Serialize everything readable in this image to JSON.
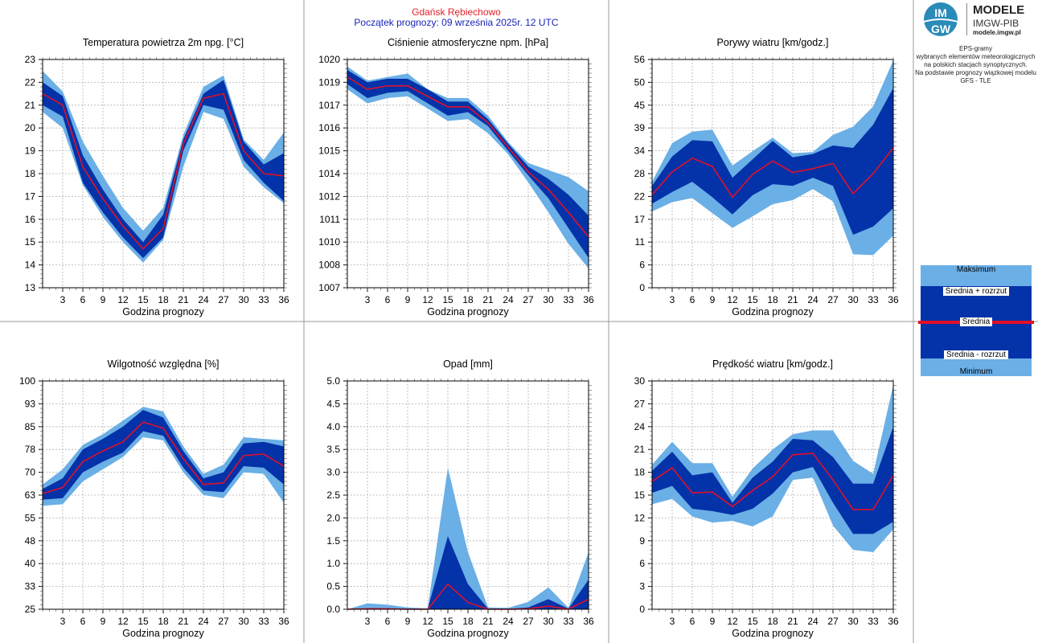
{
  "header": {
    "station": "Gdańsk Rębiechowo",
    "start": "Początek prognozy: 09 września 2025r. 12 UTC"
  },
  "brand": {
    "logo_text_top": "IM",
    "logo_text_bottom": "GW",
    "name1": "MODELE",
    "name2": "IMGW-PIB",
    "site": "modele.imgw.pl"
  },
  "description": {
    "lines": [
      "EPS-gramy",
      "wybranych elementów meteorologicznych",
      "na polskich stacjach  synoptycznych.",
      "",
      "Na podstawie prognozy wiązkowej modelu",
      "GFS - TLE"
    ]
  },
  "legend": {
    "max": "Maksimum",
    "mean_plus": "Średnia + rozrzut",
    "mean": "Średnia",
    "mean_minus": "Średnia - rozrzut",
    "min": "Minimum"
  },
  "colors": {
    "outer_band": "#6aafe6",
    "inner_band": "#0432a8",
    "mean_line": "#e0102a",
    "grid": "#b0b0b0"
  },
  "chart_data": [
    {
      "type": "area",
      "title": "Temperatura powietrza 2m npg. [°C]",
      "xlabel": "Godzina prognozy",
      "ylabel": "",
      "x": [
        0,
        3,
        6,
        9,
        12,
        15,
        18,
        21,
        24,
        27,
        30,
        33,
        36
      ],
      "xticks": [
        "3",
        "6",
        "9",
        "12",
        "15",
        "18",
        "21",
        "24",
        "27",
        "30",
        "33",
        "36"
      ],
      "yticks": [
        "13",
        "14",
        "15",
        "16",
        "17",
        "18",
        "19",
        "20",
        "21",
        "22",
        "23"
      ],
      "ylim": [
        13,
        23
      ],
      "max": [
        22.5,
        21.6,
        19.4,
        17.9,
        16.5,
        15.5,
        16.5,
        19.7,
        21.8,
        22.3,
        19.5,
        18.6,
        19.8
      ],
      "mean_plus": [
        22.0,
        21.4,
        18.8,
        17.3,
        16.0,
        15.0,
        16.2,
        19.5,
        21.5,
        22.1,
        19.4,
        18.4,
        18.9
      ],
      "mean": [
        21.5,
        21.0,
        18.3,
        16.9,
        15.7,
        14.7,
        15.6,
        19.3,
        21.3,
        21.5,
        19.0,
        18.0,
        17.9
      ],
      "mean_minus": [
        21.0,
        20.5,
        17.6,
        16.3,
        15.2,
        14.3,
        15.2,
        19.0,
        21.0,
        20.8,
        18.6,
        17.6,
        16.8
      ],
      "min": [
        20.7,
        20.0,
        17.5,
        16.1,
        15.0,
        14.1,
        15.1,
        18.3,
        20.7,
        20.4,
        18.3,
        17.4,
        16.7
      ]
    },
    {
      "type": "area",
      "title": "Ciśnienie atmosferyczne npm. [hPa]",
      "xlabel": "Godzina prognozy",
      "ylabel": "",
      "x": [
        0,
        3,
        6,
        9,
        12,
        15,
        18,
        21,
        24,
        27,
        30,
        33,
        36
      ],
      "xticks": [
        "3",
        "6",
        "9",
        "12",
        "15",
        "18",
        "21",
        "24",
        "27",
        "30",
        "33",
        "36"
      ],
      "yticks": [
        "1007",
        "1008",
        "1010",
        "1011",
        "1012",
        "1014",
        "1015",
        "1016",
        "1017",
        "1019",
        "1020"
      ],
      "ylim": [
        1007,
        1020
      ],
      "max": [
        1019.6,
        1018.8,
        1019.0,
        1019.2,
        1018.3,
        1017.8,
        1017.8,
        1016.8,
        1015.3,
        1014.1,
        1013.7,
        1013.3,
        1012.5
      ],
      "mean_plus": [
        1019.4,
        1018.7,
        1018.9,
        1018.9,
        1018.3,
        1017.6,
        1017.6,
        1016.6,
        1015.2,
        1013.9,
        1013.2,
        1012.3,
        1011.1
      ],
      "mean": [
        1019.0,
        1018.3,
        1018.5,
        1018.5,
        1017.9,
        1017.3,
        1017.3,
        1016.4,
        1015.0,
        1013.6,
        1012.6,
        1011.3,
        1009.9
      ],
      "mean_minus": [
        1018.6,
        1017.8,
        1018.1,
        1018.2,
        1017.5,
        1016.8,
        1017.0,
        1016.2,
        1014.8,
        1013.4,
        1012.1,
        1010.4,
        1008.7
      ],
      "min": [
        1018.3,
        1017.5,
        1017.8,
        1017.9,
        1017.2,
        1016.5,
        1016.6,
        1015.8,
        1014.6,
        1013.0,
        1011.3,
        1009.5,
        1008.1
      ]
    },
    {
      "type": "area",
      "title": "Porywy wiatru [km/godz.]",
      "xlabel": "Godzina prognozy",
      "ylabel": "",
      "x": [
        0,
        3,
        6,
        9,
        12,
        15,
        18,
        21,
        24,
        27,
        30,
        33,
        36
      ],
      "xticks": [
        "3",
        "6",
        "9",
        "12",
        "15",
        "18",
        "21",
        "24",
        "27",
        "30",
        "33",
        "36"
      ],
      "yticks": [
        "0",
        "6",
        "11",
        "17",
        "22",
        "28",
        "34",
        "39",
        "45",
        "50",
        "56"
      ],
      "ylim": [
        0,
        56
      ],
      "max": [
        26.0,
        35.5,
        38.3,
        38.8,
        30.0,
        33.5,
        36.8,
        33.0,
        33.3,
        37.5,
        39.5,
        44.5,
        55.8
      ],
      "mean_plus": [
        25.0,
        32.2,
        36.2,
        35.9,
        27.0,
        31.5,
        36.0,
        32.0,
        32.8,
        34.9,
        34.3,
        40.0,
        49.0
      ],
      "mean": [
        22.8,
        28.4,
        31.8,
        29.8,
        22.2,
        27.8,
        31.1,
        28.3,
        29.2,
        30.5,
        23.1,
        28.0,
        34.3
      ],
      "mean_minus": [
        20.6,
        23.5,
        26.0,
        22.2,
        18.0,
        22.7,
        25.4,
        25.0,
        27.0,
        25.0,
        13.0,
        15.0,
        19.5
      ],
      "min": [
        18.7,
        21.0,
        22.0,
        18.3,
        14.7,
        17.5,
        20.5,
        21.5,
        24.2,
        21.2,
        8.2,
        8.0,
        12.8
      ]
    },
    {
      "type": "area",
      "title": "Wilgotność względna [%]",
      "xlabel": "Godzina prognozy",
      "ylabel": "",
      "x": [
        0,
        3,
        6,
        9,
        12,
        15,
        18,
        21,
        24,
        27,
        30,
        33,
        36
      ],
      "xticks": [
        "3",
        "6",
        "9",
        "12",
        "15",
        "18",
        "21",
        "24",
        "27",
        "30",
        "33",
        "36"
      ],
      "yticks": [
        "25",
        "33",
        "40",
        "48",
        "55",
        "63",
        "70",
        "78",
        "85",
        "93",
        "100"
      ],
      "ylim": [
        25,
        100
      ],
      "max": [
        66.0,
        71.0,
        79.0,
        82.5,
        87.0,
        91.5,
        90.0,
        78.5,
        69.5,
        72.5,
        81.5,
        81.0,
        80.5
      ],
      "mean_plus": [
        64.5,
        68.0,
        77.5,
        81.0,
        85.0,
        90.5,
        88.0,
        77.0,
        68.0,
        70.0,
        79.5,
        80.0,
        78.5
      ],
      "mean": [
        63.0,
        65.0,
        73.5,
        77.0,
        80.0,
        86.5,
        84.5,
        74.5,
        66.0,
        66.5,
        75.5,
        76.0,
        72.0
      ],
      "mean_minus": [
        61.0,
        61.5,
        70.0,
        73.5,
        76.5,
        83.5,
        82.0,
        71.5,
        64.0,
        63.5,
        72.0,
        71.5,
        66.0
      ],
      "min": [
        59.0,
        59.5,
        67.0,
        71.0,
        75.0,
        81.5,
        80.5,
        70.0,
        62.5,
        61.5,
        70.0,
        69.5,
        60.0
      ]
    },
    {
      "type": "area",
      "title": "Opad [mm]",
      "xlabel": "Godzina prognozy",
      "ylabel": "",
      "x": [
        0,
        3,
        6,
        9,
        12,
        15,
        18,
        21,
        24,
        27,
        30,
        33,
        36
      ],
      "xticks": [
        "3",
        "6",
        "9",
        "12",
        "15",
        "18",
        "21",
        "24",
        "27",
        "30",
        "33",
        "36"
      ],
      "yticks": [
        "0.0",
        "0.5",
        "1.0",
        "1.5",
        "2.0",
        "2.5",
        "3.0",
        "3.5",
        "4.0",
        "4.5",
        "5.0"
      ],
      "ylim": [
        0,
        5
      ],
      "max": [
        0.0,
        0.13,
        0.1,
        0.04,
        0.02,
        3.1,
        1.25,
        0.04,
        0.03,
        0.16,
        0.48,
        0.03,
        1.25
      ],
      "mean_plus": [
        0.0,
        0.02,
        0.02,
        0.01,
        0.01,
        1.6,
        0.55,
        0.01,
        0.01,
        0.04,
        0.22,
        0.01,
        0.65
      ],
      "mean": [
        0.0,
        0.01,
        0.01,
        0.0,
        0.0,
        0.55,
        0.15,
        0.0,
        0.0,
        0.01,
        0.07,
        0.0,
        0.22
      ],
      "mean_minus": [
        0.0,
        0.0,
        0.0,
        0.0,
        0.0,
        0.0,
        0.0,
        0.0,
        0.0,
        0.0,
        0.0,
        0.0,
        0.0
      ],
      "min": [
        0.0,
        0.0,
        0.0,
        0.0,
        0.0,
        0.0,
        0.0,
        0.0,
        0.0,
        0.0,
        0.0,
        0.0,
        0.0
      ]
    },
    {
      "type": "area",
      "title": "Prędkość wiatru [km/godz.]",
      "xlabel": "Godzina prognozy",
      "ylabel": "",
      "x": [
        0,
        3,
        6,
        9,
        12,
        15,
        18,
        21,
        24,
        27,
        30,
        33,
        36
      ],
      "xticks": [
        "3",
        "6",
        "9",
        "12",
        "15",
        "18",
        "21",
        "24",
        "27",
        "30",
        "33",
        "36"
      ],
      "yticks": [
        "0",
        "3",
        "6",
        "9",
        "12",
        "15",
        "18",
        "21",
        "24",
        "27",
        "30"
      ],
      "ylim": [
        0,
        30
      ],
      "max": [
        19.0,
        22.0,
        19.2,
        19.2,
        14.8,
        18.5,
        21.0,
        23.0,
        23.5,
        23.5,
        19.5,
        17.8,
        29.5
      ],
      "mean_plus": [
        18.2,
        20.7,
        17.6,
        18.0,
        14.0,
        17.3,
        19.4,
        22.4,
        22.2,
        20.0,
        16.5,
        16.5,
        24.0
      ],
      "mean": [
        16.8,
        18.6,
        15.3,
        15.4,
        13.5,
        15.6,
        17.4,
        20.3,
        20.5,
        17.0,
        13.1,
        13.1,
        17.6
      ],
      "mean_minus": [
        15.3,
        16.2,
        13.2,
        12.9,
        12.4,
        13.2,
        15.2,
        18.0,
        18.7,
        14.0,
        9.9,
        9.9,
        11.5
      ],
      "min": [
        13.8,
        14.5,
        12.2,
        11.4,
        11.6,
        10.9,
        12.2,
        17.0,
        17.3,
        11.0,
        7.8,
        7.5,
        10.5
      ]
    }
  ]
}
